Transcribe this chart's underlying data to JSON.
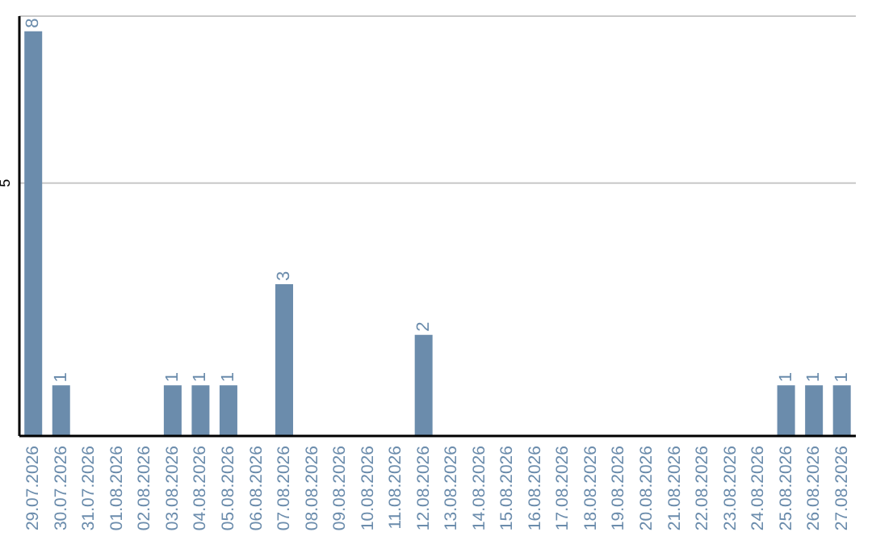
{
  "chart_data": {
    "type": "bar",
    "categories": [
      "29.07.2026",
      "30.07.2026",
      "31.07.2026",
      "01.08.2026",
      "02.08.2026",
      "03.08.2026",
      "04.08.2026",
      "05.08.2026",
      "06.08.2026",
      "07.08.2026",
      "08.08.2026",
      "09.08.2026",
      "10.08.2026",
      "11.08.2026",
      "12.08.2026",
      "13.08.2026",
      "14.08.2026",
      "15.08.2026",
      "16.08.2026",
      "17.08.2026",
      "18.08.2026",
      "19.08.2026",
      "20.08.2026",
      "21.08.2026",
      "22.08.2026",
      "23.08.2026",
      "24.08.2026",
      "25.08.2026",
      "26.08.2026",
      "27.08.2026"
    ],
    "values": [
      8,
      1,
      0,
      0,
      0,
      1,
      1,
      1,
      0,
      3,
      0,
      0,
      0,
      0,
      2,
      0,
      0,
      0,
      0,
      0,
      0,
      0,
      0,
      0,
      0,
      0,
      0,
      1,
      1,
      1
    ],
    "value_labels": [
      "8",
      "1",
      null,
      null,
      null,
      "1",
      "1",
      "1",
      null,
      "3",
      null,
      null,
      null,
      null,
      "2",
      null,
      null,
      null,
      null,
      null,
      null,
      null,
      null,
      null,
      null,
      null,
      null,
      "1",
      "1",
      "1"
    ],
    "color": "#6b8cac",
    "ylim": [
      0,
      8.3
    ],
    "yticks": [
      5
    ],
    "grid": "y"
  }
}
